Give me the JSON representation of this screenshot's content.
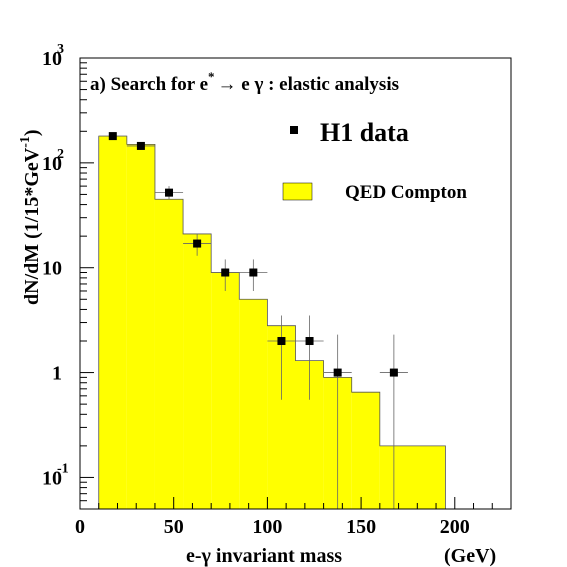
{
  "chart_data": {
    "type": "bar",
    "title": "a) Search for e",
    "title_sup": "*",
    "title_rest": "→ e γ : elastic analysis",
    "xlabel": "e-γ  invariant mass",
    "xunit": "(GeV)",
    "ylabel": "dN/dM (1/15*GeV",
    "ylabel_sup": "-1",
    "ylabel_end": ")",
    "xlim": [
      0,
      230
    ],
    "ylim": [
      0.05,
      1000
    ],
    "yscale": "log",
    "grid": false,
    "legend_placement": "top-right",
    "x_ticks": [
      {
        "value": 0,
        "label": "0"
      },
      {
        "value": 50,
        "label": "50"
      },
      {
        "value": 100,
        "label": "100"
      },
      {
        "value": 150,
        "label": "150"
      },
      {
        "value": 200,
        "label": "200"
      }
    ],
    "y_ticks": [
      {
        "value": 0.1,
        "base": "10",
        "exp": "-1"
      },
      {
        "value": 1,
        "base": "1",
        "exp": ""
      },
      {
        "value": 10,
        "base": "10",
        "exp": ""
      },
      {
        "value": 100,
        "base": "10",
        "exp": "2"
      },
      {
        "value": 1000,
        "base": "10",
        "exp": "3"
      }
    ],
    "series": [
      {
        "name": "QED Compton",
        "kind": "histogram",
        "color": "#ffff00",
        "bins": [
          {
            "lo": 10,
            "hi": 25,
            "value": 180
          },
          {
            "lo": 25,
            "hi": 40,
            "value": 150
          },
          {
            "lo": 40,
            "hi": 55,
            "value": 45
          },
          {
            "lo": 55,
            "hi": 70,
            "value": 21
          },
          {
            "lo": 70,
            "hi": 85,
            "value": 9
          },
          {
            "lo": 85,
            "hi": 100,
            "value": 5
          },
          {
            "lo": 100,
            "hi": 115,
            "value": 2.8
          },
          {
            "lo": 115,
            "hi": 130,
            "value": 1.3
          },
          {
            "lo": 130,
            "hi": 145,
            "value": 0.9
          },
          {
            "lo": 145,
            "hi": 160,
            "value": 0.65
          },
          {
            "lo": 160,
            "hi": 195,
            "value": 0.2
          }
        ]
      },
      {
        "name": "H1 data",
        "kind": "points",
        "color": "#000000",
        "points": [
          {
            "x": 17.5,
            "y": 180,
            "ylo": 167,
            "yhi": 194
          },
          {
            "x": 32.5,
            "y": 145,
            "ylo": 133,
            "yhi": 157
          },
          {
            "x": 47.5,
            "y": 52,
            "ylo": 45,
            "yhi": 60
          },
          {
            "x": 62.5,
            "y": 17,
            "ylo": 13,
            "yhi": 21
          },
          {
            "x": 77.5,
            "y": 9,
            "ylo": 6,
            "yhi": 12
          },
          {
            "x": 92.5,
            "y": 9,
            "ylo": 6,
            "yhi": 12
          },
          {
            "x": 107.5,
            "y": 2,
            "ylo": 0.55,
            "yhi": 3.5
          },
          {
            "x": 122.5,
            "y": 2,
            "ylo": 0.55,
            "yhi": 3.5
          },
          {
            "x": 137.5,
            "y": 1,
            "ylo": 0.05,
            "yhi": 2.3
          },
          {
            "x": 167.5,
            "y": 1,
            "ylo": 0.05,
            "yhi": 2.3
          }
        ]
      }
    ]
  }
}
